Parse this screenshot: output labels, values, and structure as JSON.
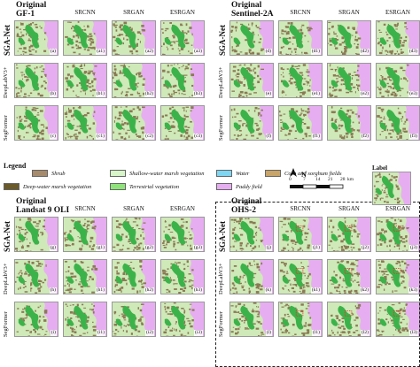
{
  "columns": [
    "SRCNN",
    "SRGAN",
    "ESRGAN"
  ],
  "quadrants": [
    {
      "title_line1": "Original",
      "title_line2": "GF-1",
      "rows": [
        {
          "name": "SGA-Net",
          "bold": true,
          "labels": [
            "(a)",
            "(a1)",
            "(a2)",
            "(a3)"
          ]
        },
        {
          "name": "DeepLabV3+",
          "bold": false,
          "labels": [
            "(b)",
            "(b1)",
            "(b2)",
            "(b3)"
          ]
        },
        {
          "name": "SegFormer",
          "bold": false,
          "labels": [
            "(c)",
            "(c1)",
            "(c2)",
            "(c3)"
          ]
        }
      ]
    },
    {
      "title_line1": "Original",
      "title_line2": "Sentinel-2A",
      "rows": [
        {
          "name": "SGA-Net",
          "bold": true,
          "labels": [
            "(d)",
            "(d1)",
            "(d2)",
            "(d3)"
          ]
        },
        {
          "name": "DeepLabV3+",
          "bold": false,
          "labels": [
            "(e)",
            "(e1)",
            "(e2)",
            "(e3)"
          ]
        },
        {
          "name": "SegFormer",
          "bold": false,
          "labels": [
            "(f)",
            "(f1)",
            "(f2)",
            "(f3)"
          ]
        }
      ]
    },
    {
      "title_line1": "Original",
      "title_line2": "Landsat 9 OLI",
      "rows": [
        {
          "name": "SGA-Net",
          "bold": true,
          "labels": [
            "(g)",
            "(g1)",
            "(g2)",
            "(g3)"
          ]
        },
        {
          "name": "DeepLabV3+",
          "bold": false,
          "labels": [
            "(h)",
            "(h1)",
            "(h2)",
            "(h3)"
          ]
        },
        {
          "name": "SegFormer",
          "bold": false,
          "labels": [
            "(i)",
            "(i1)",
            "(i2)",
            "(i3)"
          ]
        }
      ]
    },
    {
      "title_line1": "Original",
      "title_line2": "OHS-2",
      "rows": [
        {
          "name": "SGA-Net",
          "bold": true,
          "labels": [
            "(j)",
            "(j1)",
            "(j2)",
            "(j3)"
          ]
        },
        {
          "name": "DeepLabV3+",
          "bold": false,
          "labels": [
            "(k)",
            "(k1)",
            "(k2)",
            "(k3)"
          ]
        },
        {
          "name": "SegFormer",
          "bold": false,
          "labels": [
            "(l)",
            "(l1)",
            "(l2)",
            "(l3)"
          ]
        }
      ]
    }
  ],
  "legend": {
    "title": "Legend",
    "items": [
      {
        "label": "Shrub",
        "color": "#a78b6d"
      },
      {
        "label": "Shallow-water marsh vegetation",
        "color": "#d7f5c8"
      },
      {
        "label": "Water",
        "color": "#7fd6f2"
      },
      {
        "label": "Corn and sorghum fields",
        "color": "#c8a46a"
      },
      {
        "label": "Deep-water marsh vegetation",
        "color": "#6b5a2a"
      },
      {
        "label": "Terrestrial vegetation",
        "color": "#8fe27a"
      },
      {
        "label": "Paddy field",
        "color": "#e6aef0"
      }
    ]
  },
  "north_label": "N",
  "scale": {
    "ticks": [
      "0",
      "7",
      "14",
      "21",
      "28"
    ],
    "unit": "km"
  },
  "label_inset": {
    "title": "Label"
  },
  "colors": {
    "paddy": "#e6aef0",
    "green": "#3cb34a",
    "light_green": "#cfe9b8",
    "brown": "#8a7a55",
    "red_box": "#e0342a"
  }
}
